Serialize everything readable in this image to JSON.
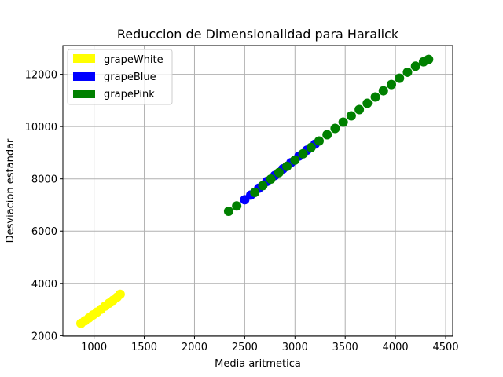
{
  "chart_data": {
    "type": "scatter",
    "title": "Reduccion de Dimensionalidad para Haralick",
    "xlabel": "Media aritmetica",
    "ylabel": "Desviacion estandar",
    "xlim": [
      690,
      4570
    ],
    "ylim": [
      1980,
      13100
    ],
    "xticks": [
      1000,
      1500,
      2000,
      2500,
      3000,
      3500,
      4000,
      4500
    ],
    "yticks": [
      2000,
      4000,
      6000,
      8000,
      10000,
      12000
    ],
    "grid": true,
    "legend_position": "top-left",
    "series": [
      {
        "name": "grapeWhite",
        "color": "#ffff00",
        "points": [
          [
            870,
            2470
          ],
          [
            910,
            2570
          ],
          [
            950,
            2680
          ],
          [
            990,
            2790
          ],
          [
            1030,
            2900
          ],
          [
            1070,
            3010
          ],
          [
            1110,
            3130
          ],
          [
            1150,
            3240
          ],
          [
            1190,
            3350
          ],
          [
            1230,
            3470
          ],
          [
            1260,
            3580
          ]
        ]
      },
      {
        "name": "grapeBlue",
        "color": "#0000ff",
        "points": [
          [
            2500,
            7200
          ],
          [
            2560,
            7380
          ],
          [
            2640,
            7640
          ],
          [
            2720,
            7900
          ],
          [
            2800,
            8130
          ],
          [
            2880,
            8380
          ],
          [
            2960,
            8620
          ],
          [
            3040,
            8870
          ],
          [
            3120,
            9100
          ],
          [
            3200,
            9330
          ]
        ]
      },
      {
        "name": "grapePink",
        "color": "#008000",
        "points": [
          [
            2340,
            6760
          ],
          [
            2420,
            6960
          ],
          [
            2600,
            7480
          ],
          [
            2680,
            7740
          ],
          [
            2760,
            7990
          ],
          [
            2840,
            8240
          ],
          [
            2920,
            8480
          ],
          [
            3000,
            8720
          ],
          [
            3080,
            8960
          ],
          [
            3160,
            9200
          ],
          [
            3240,
            9450
          ],
          [
            3320,
            9690
          ],
          [
            3400,
            9930
          ],
          [
            3480,
            10170
          ],
          [
            3560,
            10410
          ],
          [
            3640,
            10650
          ],
          [
            3720,
            10890
          ],
          [
            3800,
            11130
          ],
          [
            3880,
            11370
          ],
          [
            3960,
            11610
          ],
          [
            4040,
            11850
          ],
          [
            4120,
            12080
          ],
          [
            4200,
            12310
          ],
          [
            4280,
            12480
          ],
          [
            4330,
            12570
          ]
        ]
      }
    ]
  }
}
